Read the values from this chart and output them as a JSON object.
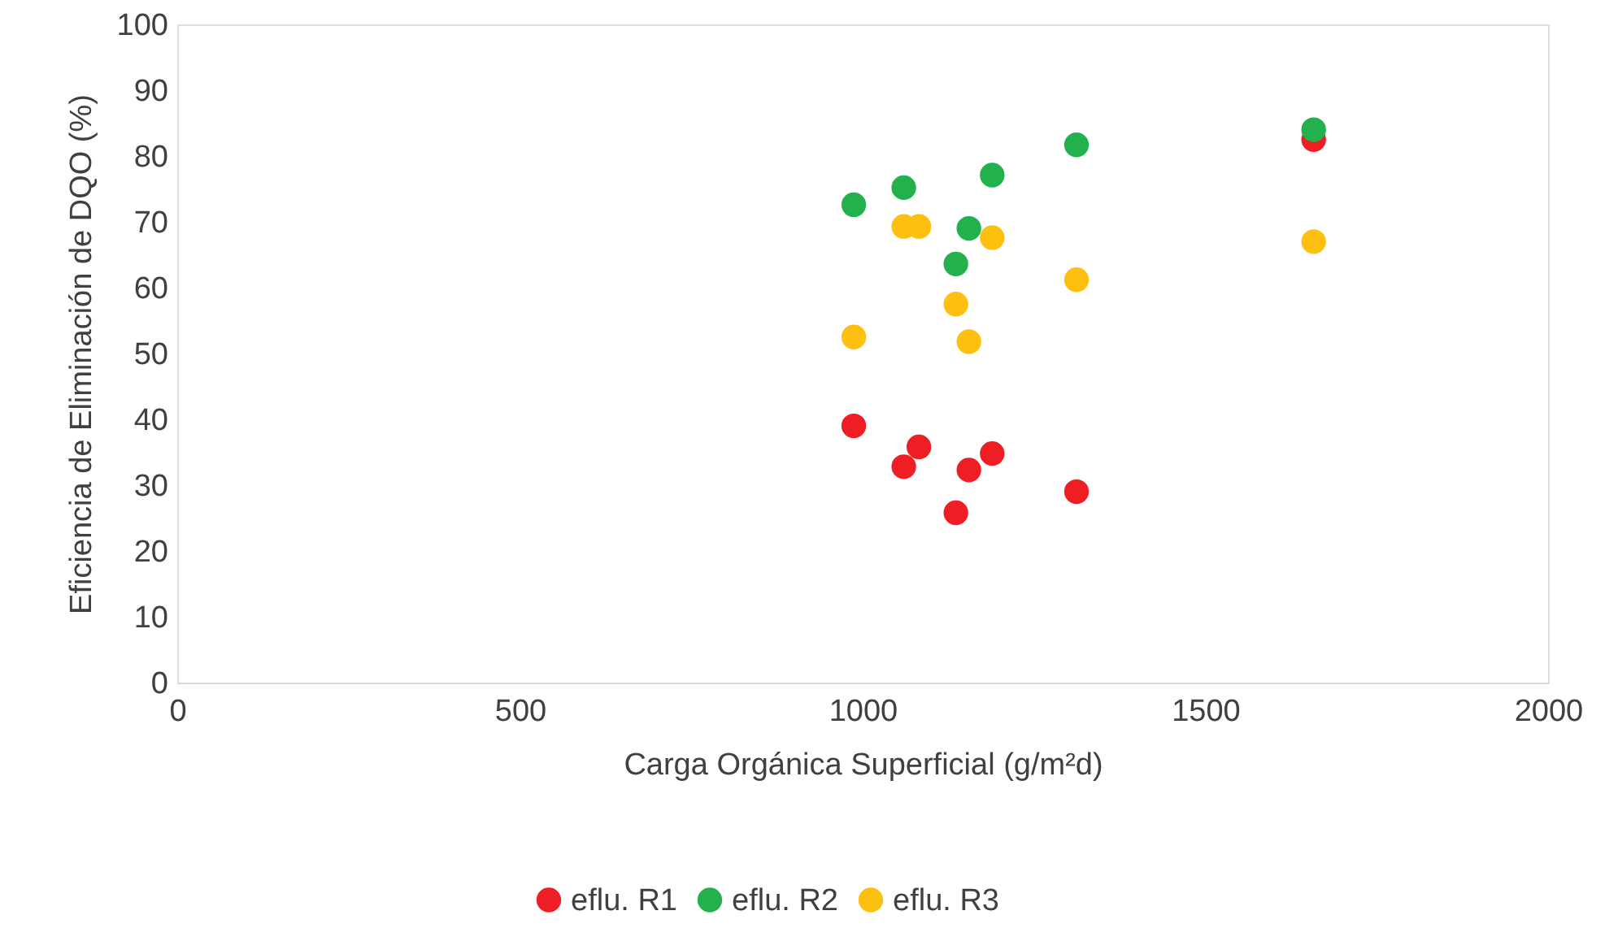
{
  "chart_data": {
    "type": "scatter",
    "xlabel": "Carga Orgánica Superficial (g/m²d)",
    "ylabel": "Eficiencia de Eliminación de DQO (%)",
    "xlim": [
      0,
      2000
    ],
    "xticks": [
      0,
      500,
      {
        "value": 1000,
        "label": "1000"
      },
      {
        "value": 1500,
        "label": "1500"
      },
      {
        "value": 2000,
        "label": "2000"
      }
    ],
    "ylim": [
      0,
      100
    ],
    "yticks": [
      0,
      10,
      20,
      30,
      40,
      50,
      60,
      70,
      80,
      90,
      100
    ],
    "grid": false,
    "legend": "bottom",
    "marker": "circle",
    "series": [
      {
        "name": "eflu. R1",
        "color": "#ee1f24",
        "x": [
          987,
          1060,
          1082,
          1136,
          1155,
          1189,
          1312,
          1658
        ],
        "values": [
          39,
          32.8,
          35.8,
          25.8,
          32.3,
          34.8,
          29,
          82.5
        ]
      },
      {
        "name": "eflu. R2",
        "color": "#23b14d",
        "x": [
          987,
          1060,
          1136,
          1155,
          1189,
          1312,
          1658
        ],
        "values": [
          72.6,
          75.2,
          63.6,
          69,
          77.1,
          81.7,
          84
        ]
      },
      {
        "name": "eflu. R3",
        "color": "#fdc010",
        "x": [
          987,
          1060,
          1082,
          1136,
          1155,
          1189,
          1312,
          1658
        ],
        "values": [
          52.5,
          69.3,
          69.3,
          57.5,
          51.8,
          67.6,
          61.2,
          67
        ]
      }
    ]
  }
}
